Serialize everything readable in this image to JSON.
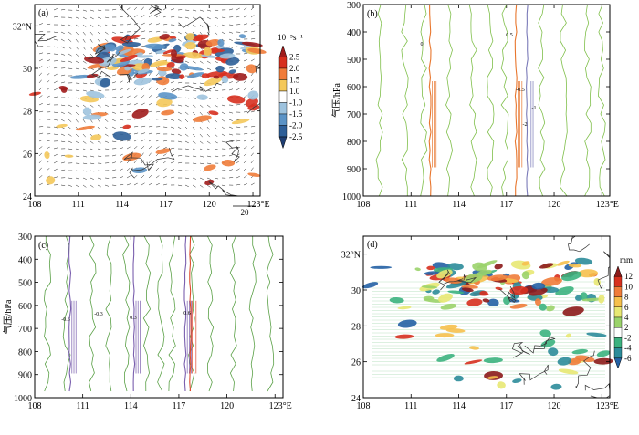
{
  "chart_data": [
    {
      "type": "heatmap",
      "panel_label": "(a)",
      "x_ticks": [
        108,
        111,
        114,
        117,
        120,
        123
      ],
      "x_tick_labels": [
        "108",
        "111",
        "114",
        "117",
        "120",
        "123°E"
      ],
      "y_ticks": [
        24,
        26,
        28,
        30,
        32
      ],
      "y_tick_labels": [
        "24",
        "26",
        "28",
        "30",
        "32°N"
      ],
      "xlim": [
        108,
        123.5
      ],
      "ylim": [
        24,
        33
      ],
      "colorbar": {
        "unit": "10⁻⁵s⁻¹",
        "levels": [
          2.5,
          2.0,
          1.5,
          1.0,
          -1.0,
          -1.5,
          -2.0,
          -2.5
        ],
        "labels": [
          "2.5",
          "2.0",
          "1.5",
          "1.0",
          "-1.0",
          "-1.5",
          "-2.0",
          "-2.5"
        ],
        "colors": [
          "#a01c1c",
          "#d7301f",
          "#f07c3a",
          "#f4c85a",
          "#ffffff",
          "#9ec3de",
          "#5b93c6",
          "#2e5f98",
          "#1f3f73"
        ]
      },
      "vector_reference": "20",
      "map_overlay": true
    },
    {
      "type": "line",
      "panel_label": "(b)",
      "x_ticks": [
        108,
        111,
        114,
        117,
        120,
        123
      ],
      "x_tick_labels": [
        "108",
        "111",
        "114",
        "117",
        "120",
        "123°E"
      ],
      "y_ticks": [
        300,
        400,
        500,
        600,
        700,
        800,
        900,
        1000
      ],
      "y_tick_labels": [
        "300",
        "400",
        "500",
        "600",
        "700",
        "800",
        "900",
        "1000"
      ],
      "ylabel": "气压/hPa",
      "xlim": [
        108,
        123.5
      ],
      "ylim": [
        1000,
        300
      ],
      "contour_labels": [
        "0",
        "0.5",
        "-2",
        "-0.5",
        "-1"
      ],
      "series": [
        {
          "color": "#7fbf4a",
          "contour": "0",
          "x": [
            109.0,
            110.6,
            111.8,
            113.4,
            114.9,
            116.0,
            116.9,
            119.2,
            120.6,
            122.1,
            123.0
          ]
        },
        {
          "color": "#e8762d",
          "contour": "0.5",
          "x": [
            112.2,
            117.6
          ]
        },
        {
          "color": "#7a7ab8",
          "contour": "-0.5",
          "x": [
            118.3
          ]
        }
      ]
    },
    {
      "type": "line",
      "panel_label": "(c)",
      "x_ticks": [
        108,
        111,
        114,
        117,
        120,
        123
      ],
      "x_tick_labels": [
        "108",
        "111",
        "114",
        "117",
        "120",
        "123°E"
      ],
      "y_ticks": [
        300,
        400,
        500,
        600,
        700,
        800,
        900,
        1000
      ],
      "y_tick_labels": [
        "300",
        "400",
        "500",
        "600",
        "700",
        "800",
        "900",
        "1000"
      ],
      "ylabel": "气压/hPa",
      "xlim": [
        108,
        123.5
      ],
      "ylim": [
        1000,
        300
      ],
      "contour_labels": [
        "-0.6",
        "-0.3",
        "0.3",
        "0.6"
      ],
      "series": [
        {
          "color": "#5aa046",
          "contour": "0",
          "x": [
            108.8,
            110.0,
            111.6,
            112.6,
            113.7,
            115.0,
            115.9,
            116.6,
            117.8,
            119.0,
            120.4,
            121.6,
            122.7
          ]
        },
        {
          "color": "#7a5fae",
          "contour": "-0.3",
          "x": [
            110.2,
            114.2,
            117.4
          ]
        },
        {
          "color": "#e0492b",
          "contour": "0.3",
          "x": [
            117.7
          ]
        }
      ]
    },
    {
      "type": "heatmap",
      "panel_label": "(d)",
      "x_ticks": [
        108,
        111,
        114,
        117,
        120,
        123
      ],
      "x_tick_labels": [
        "108",
        "111",
        "114",
        "117",
        "120",
        "123°E"
      ],
      "y_ticks": [
        24,
        26,
        28,
        30,
        32
      ],
      "y_tick_labels": [
        "24",
        "26",
        "28",
        "30",
        "32°N"
      ],
      "xlim": [
        108,
        123.5
      ],
      "ylim": [
        24,
        33
      ],
      "colorbar": {
        "unit": "mm",
        "levels": [
          12,
          10,
          8,
          6,
          4,
          2,
          -2,
          -4,
          -6
        ],
        "labels": [
          "12",
          "10",
          "8",
          "6",
          "4",
          "2",
          "-2",
          "-4",
          "-6"
        ],
        "colors": [
          "#8c1a1a",
          "#d7301f",
          "#f07c3a",
          "#f6c04c",
          "#e8e873",
          "#9bd36b",
          "#ffffff",
          "#3cb27f",
          "#2c8c9a",
          "#2461a4"
        ]
      },
      "map_overlay": true
    }
  ]
}
